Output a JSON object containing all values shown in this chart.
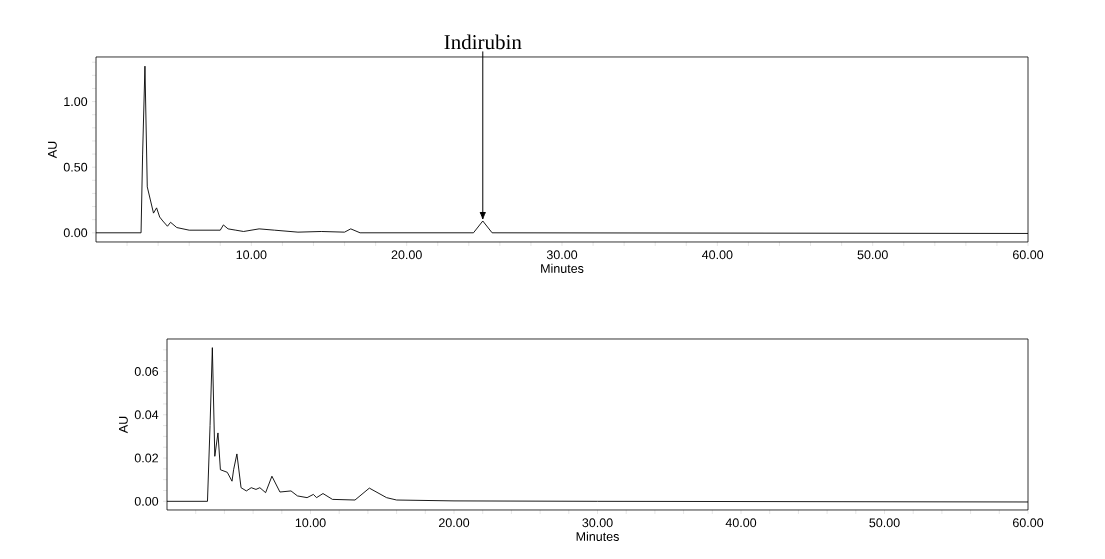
{
  "chart_data": [
    {
      "type": "line",
      "xlabel": "Minutes",
      "ylabel": "AU",
      "color": "#000000",
      "marker": "none",
      "line_style": "solid",
      "x": [
        0,
        2.9,
        3.0,
        3.15,
        3.3,
        3.5,
        3.7,
        3.9,
        4.1,
        4.3,
        4.6,
        4.8,
        5.2,
        6,
        8,
        8.2,
        8.5,
        9,
        9.5,
        10.5,
        11.5,
        13,
        14.5,
        16,
        16.4,
        17,
        24.3,
        24.9,
        25.5,
        60
      ],
      "values": [
        0,
        0,
        0.6,
        1.27,
        0.35,
        0.25,
        0.15,
        0.19,
        0.12,
        0.09,
        0.05,
        0.08,
        0.04,
        0.02,
        0.02,
        0.06,
        0.03,
        0.02,
        0.01,
        0.03,
        0.02,
        0.005,
        0.01,
        0.005,
        0.03,
        0.0,
        0.0,
        0.09,
        0.0,
        -0.005
      ],
      "xlim": [
        0,
        60
      ],
      "ylim": [
        -0.07,
        1.34
      ],
      "xticks": [
        {
          "value": 2,
          "label": null
        },
        {
          "value": 4,
          "label": null
        },
        {
          "value": 6,
          "label": null
        },
        {
          "value": 8,
          "label": null
        },
        {
          "value": 10,
          "label": "10.00"
        },
        {
          "value": 12,
          "label": null
        },
        {
          "value": 14,
          "label": null
        },
        {
          "value": 16,
          "label": null
        },
        {
          "value": 18,
          "label": null
        },
        {
          "value": 20,
          "label": "20.00"
        },
        {
          "value": 22,
          "label": null
        },
        {
          "value": 24,
          "label": null
        },
        {
          "value": 26,
          "label": null
        },
        {
          "value": 28,
          "label": null
        },
        {
          "value": 30,
          "label": "30.00"
        },
        {
          "value": 32,
          "label": null
        },
        {
          "value": 34,
          "label": null
        },
        {
          "value": 36,
          "label": null
        },
        {
          "value": 38,
          "label": null
        },
        {
          "value": 40,
          "label": "40.00"
        },
        {
          "value": 42,
          "label": null
        },
        {
          "value": 44,
          "label": null
        },
        {
          "value": 46,
          "label": null
        },
        {
          "value": 48,
          "label": null
        },
        {
          "value": 50,
          "label": "50.00"
        },
        {
          "value": 52,
          "label": null
        },
        {
          "value": 54,
          "label": null
        },
        {
          "value": 56,
          "label": null
        },
        {
          "value": 58,
          "label": null
        },
        {
          "value": 60,
          "label": "60.00"
        }
      ],
      "yticks": [
        {
          "value": 0,
          "label": "0.00"
        },
        {
          "value": 0.1,
          "label": null
        },
        {
          "value": 0.2,
          "label": null
        },
        {
          "value": 0.3,
          "label": null
        },
        {
          "value": 0.4,
          "label": null
        },
        {
          "value": 0.5,
          "label": "0.50"
        },
        {
          "value": 0.6,
          "label": null
        },
        {
          "value": 0.7,
          "label": null
        },
        {
          "value": 0.8,
          "label": null
        },
        {
          "value": 0.9,
          "label": null
        },
        {
          "value": 1.0,
          "label": "1.00"
        },
        {
          "value": 1.1,
          "label": null
        },
        {
          "value": 1.2,
          "label": null
        },
        {
          "value": 1.3,
          "label": null
        }
      ],
      "annotations": [
        {
          "text": "Indirubin",
          "x": 24.9,
          "y": 0.09
        }
      ]
    },
    {
      "type": "line",
      "xlabel": "Minutes",
      "ylabel": "AU",
      "color": "#000000",
      "marker": "none",
      "line_style": "solid",
      "x": [
        0,
        2.82,
        3.0,
        3.16,
        3.33,
        3.55,
        3.72,
        4.2,
        4.53,
        4.64,
        4.87,
        5.16,
        5.53,
        5.87,
        6.2,
        6.47,
        6.87,
        7.31,
        7.87,
        8.64,
        9.09,
        9.76,
        10.2,
        10.42,
        10.87,
        11.53,
        13.1,
        14.1,
        15.3,
        16,
        20,
        30,
        60
      ],
      "values": [
        0,
        0,
        0.035,
        0.071,
        0.0208,
        0.0316,
        0.0146,
        0.0134,
        0.0093,
        0.0146,
        0.0219,
        0.0063,
        0.0048,
        0.0063,
        0.0055,
        0.0063,
        0.004,
        0.0116,
        0.0043,
        0.0048,
        0.0025,
        0.0017,
        0.0032,
        0.0017,
        0.0036,
        0.0009,
        0.0006,
        0.0061,
        0.0017,
        0.0006,
        0.0002,
        0,
        -0.0003
      ],
      "xlim": [
        0,
        60
      ],
      "ylim": [
        -0.004,
        0.075
      ],
      "xticks": [
        {
          "value": 2,
          "label": null
        },
        {
          "value": 4,
          "label": null
        },
        {
          "value": 6,
          "label": null
        },
        {
          "value": 8,
          "label": null
        },
        {
          "value": 10,
          "label": "10.00"
        },
        {
          "value": 12,
          "label": null
        },
        {
          "value": 14,
          "label": null
        },
        {
          "value": 16,
          "label": null
        },
        {
          "value": 18,
          "label": null
        },
        {
          "value": 20,
          "label": "20.00"
        },
        {
          "value": 22,
          "label": null
        },
        {
          "value": 24,
          "label": null
        },
        {
          "value": 26,
          "label": null
        },
        {
          "value": 28,
          "label": null
        },
        {
          "value": 30,
          "label": "30.00"
        },
        {
          "value": 32,
          "label": null
        },
        {
          "value": 34,
          "label": null
        },
        {
          "value": 36,
          "label": null
        },
        {
          "value": 38,
          "label": null
        },
        {
          "value": 40,
          "label": "40.00"
        },
        {
          "value": 42,
          "label": null
        },
        {
          "value": 44,
          "label": null
        },
        {
          "value": 46,
          "label": null
        },
        {
          "value": 48,
          "label": null
        },
        {
          "value": 50,
          "label": "50.00"
        },
        {
          "value": 52,
          "label": null
        },
        {
          "value": 54,
          "label": null
        },
        {
          "value": 56,
          "label": null
        },
        {
          "value": 58,
          "label": null
        },
        {
          "value": 60,
          "label": "60.00"
        }
      ],
      "yticks": [
        {
          "value": 0,
          "label": "0.00"
        },
        {
          "value": 0.005,
          "label": null
        },
        {
          "value": 0.01,
          "label": null
        },
        {
          "value": 0.015,
          "label": null
        },
        {
          "value": 0.02,
          "label": "0.02"
        },
        {
          "value": 0.025,
          "label": null
        },
        {
          "value": 0.03,
          "label": null
        },
        {
          "value": 0.035,
          "label": null
        },
        {
          "value": 0.04,
          "label": "0.04"
        },
        {
          "value": 0.045,
          "label": null
        },
        {
          "value": 0.05,
          "label": null
        },
        {
          "value": 0.055,
          "label": null
        },
        {
          "value": 0.06,
          "label": "0.06"
        },
        {
          "value": 0.065,
          "label": null
        },
        {
          "value": 0.07,
          "label": null
        }
      ]
    }
  ]
}
